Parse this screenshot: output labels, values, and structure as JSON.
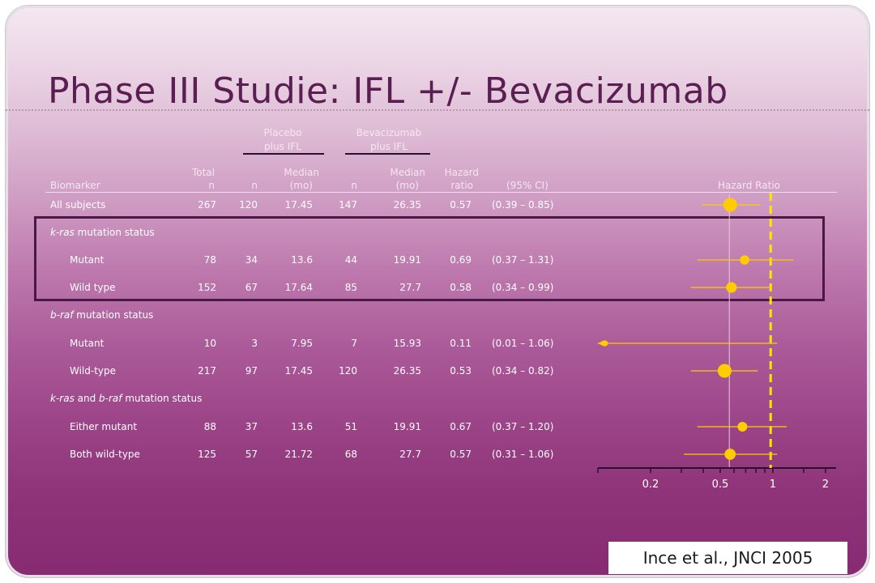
{
  "slide": {
    "title": "Phase III Studie: IFL +/- Bevacizumab",
    "citation": "Ince et al.,  JNCI 2005"
  },
  "colors": {
    "marker": "#ffcc00",
    "ci_line": "#ffcc00",
    "reference_line": "#ffe600",
    "highlight_box": "#4b1745"
  },
  "table": {
    "group_headers": {
      "placebo": [
        "Placebo",
        "plus IFL"
      ],
      "bev": [
        "Bevacizumab",
        "plus IFL"
      ]
    },
    "columns": {
      "biomarker": "Biomarker",
      "total": [
        "Total",
        "n"
      ],
      "p_n": "n",
      "p_median": [
        "Median",
        "(mo)"
      ],
      "b_n": "n",
      "b_median": [
        "Median",
        "(mo)"
      ],
      "hr": [
        "Hazard",
        "ratio"
      ],
      "ci": "(95% CI)",
      "plot": "Hazard Ratio"
    },
    "rows": [
      {
        "label": "All subjects",
        "italic": "",
        "rest": "",
        "indent": false,
        "total": "267",
        "p_n": "120",
        "p_med": "17.45",
        "b_n": "147",
        "b_med": "26.35",
        "hr": "0.57",
        "ci": "(0.39 – 0.85)"
      },
      {
        "label": "",
        "italic": "k-ras",
        "rest": " mutation status",
        "indent": false,
        "total": "",
        "p_n": "",
        "p_med": "",
        "b_n": "",
        "b_med": "",
        "hr": "",
        "ci": ""
      },
      {
        "label": "Mutant",
        "italic": "",
        "rest": "",
        "indent": true,
        "total": "78",
        "p_n": "34",
        "p_med": "13.6",
        "b_n": "44",
        "b_med": "19.91",
        "hr": "0.69",
        "ci": "(0.37 – 1.31)"
      },
      {
        "label": "Wild type",
        "italic": "",
        "rest": "",
        "indent": true,
        "total": "152",
        "p_n": "67",
        "p_med": "17.64",
        "b_n": "85",
        "b_med": "27.7",
        "hr": "0.58",
        "ci": "(0.34 – 0.99)"
      },
      {
        "label": "",
        "italic": "b-raf",
        "rest": " mutation status",
        "indent": false,
        "total": "",
        "p_n": "",
        "p_med": "",
        "b_n": "",
        "b_med": "",
        "hr": "",
        "ci": ""
      },
      {
        "label": "Mutant",
        "italic": "",
        "rest": "",
        "indent": true,
        "total": "10",
        "p_n": "3",
        "p_med": "7.95",
        "b_n": "7",
        "b_med": "15.93",
        "hr": "0.11",
        "ci": "(0.01 – 1.06)"
      },
      {
        "label": "Wild-type",
        "italic": "",
        "rest": "",
        "indent": true,
        "total": "217",
        "p_n": "97",
        "p_med": "17.45",
        "b_n": "120",
        "b_med": "26.35",
        "hr": "0.53",
        "ci": "(0.34 – 0.82)"
      },
      {
        "label": "",
        "italic": "k-ras",
        "rest": " and ",
        "italic2": "b-raf",
        "rest2": " mutation status",
        "indent": false,
        "total": "",
        "p_n": "",
        "p_med": "",
        "b_n": "",
        "b_med": "",
        "hr": "",
        "ci": ""
      },
      {
        "label": "Either mutant",
        "italic": "",
        "rest": "",
        "indent": true,
        "total": "88",
        "p_n": "37",
        "p_med": "13.6",
        "b_n": "51",
        "b_med": "19.91",
        "hr": "0.67",
        "ci": "(0.37 – 1.20)"
      },
      {
        "label": "Both wild-type",
        "italic": "",
        "rest": "",
        "indent": true,
        "total": "125",
        "p_n": "57",
        "p_med": "21.72",
        "b_n": "68",
        "b_med": "27.7",
        "hr": "0.57",
        "ci": "(0.31 – 1.06)"
      }
    ]
  },
  "chart_data": {
    "type": "forest",
    "xlabel": "Hazard Ratio",
    "x_scale": "log",
    "xlim": [
      0.1,
      2.3
    ],
    "xticks": [
      0.2,
      0.5,
      1,
      2
    ],
    "xtick_labels": [
      "0.2",
      "0.5",
      "1",
      "2"
    ],
    "reference_line": 0.57,
    "grid": false,
    "series": [
      {
        "label": "All subjects",
        "hr": 0.57,
        "lo": 0.39,
        "hi": 0.85,
        "weight": 1.0
      },
      {
        "label": "k-ras Mutant",
        "hr": 0.69,
        "lo": 0.37,
        "hi": 1.31,
        "weight": 0.5
      },
      {
        "label": "k-ras Wild type",
        "hr": 0.58,
        "lo": 0.34,
        "hi": 0.99,
        "weight": 0.65
      },
      {
        "label": "b-raf Mutant",
        "hr": 0.11,
        "lo": 0.01,
        "hi": 1.06,
        "weight": 0.1
      },
      {
        "label": "b-raf Wild-type",
        "hr": 0.53,
        "lo": 0.34,
        "hi": 0.82,
        "weight": 1.0
      },
      {
        "label": "Either mutant",
        "hr": 0.67,
        "lo": 0.37,
        "hi": 1.2,
        "weight": 0.55
      },
      {
        "label": "Both wild-type",
        "hr": 0.57,
        "lo": 0.31,
        "hi": 1.06,
        "weight": 0.7
      }
    ]
  }
}
